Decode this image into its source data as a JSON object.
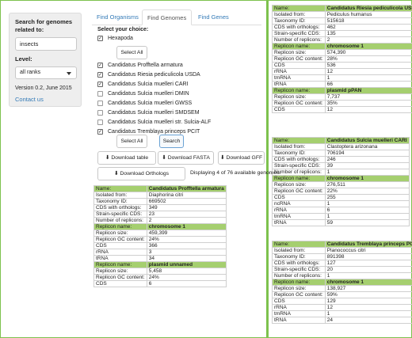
{
  "sidebar": {
    "search_label": "Search for genomes related to:",
    "search_value": "insects",
    "level_label": "Level:",
    "level_value": "all ranks",
    "version": "Version 0.2, June 2015",
    "contact": "Contact us"
  },
  "tabs": [
    "Find Organisms",
    "Find Genomes",
    "Find Genes"
  ],
  "choice_label": "Select your choice:",
  "group": "Hexapoda",
  "select_all": "Select All",
  "organisms": [
    {
      "name": "Candidatus Profftella armatura",
      "checked": true
    },
    {
      "name": "Candidatus Riesia pediculicola USDA",
      "checked": true
    },
    {
      "name": "Candidatus Sulcia muelleri CARI",
      "checked": true
    },
    {
      "name": "Candidatus Sulcia muelleri DMIN",
      "checked": false
    },
    {
      "name": "Candidatus Sulcia muelleri GWSS",
      "checked": false
    },
    {
      "name": "Candidatus Sulcia muelleri SMDSEM",
      "checked": false
    },
    {
      "name": "Candidatus Sulcia muelleri str. Sulcia-ALF",
      "checked": false
    },
    {
      "name": "Candidatus Tremblaya princeps PCIT",
      "checked": true
    }
  ],
  "buttons": {
    "select_all": "Select All",
    "search": "Search",
    "download_table": "Download table",
    "download_fasta": "Download FASTA",
    "download_gff": "Download GFF",
    "download_orthologs": "Download Orthologs"
  },
  "displaying": "Displaying 4 of 76 available genomes:",
  "main_table": [
    [
      "g",
      "Name:",
      "Candidatus Profftella armatura"
    ],
    [
      "",
      "Isolated from:",
      "Diaphorina citri"
    ],
    [
      "",
      "Taxonomy ID:",
      "669502"
    ],
    [
      "",
      "CDS with orthologs:",
      "349"
    ],
    [
      "",
      "Strain-specific CDS:",
      "23"
    ],
    [
      "",
      "Number of replicons:",
      "2"
    ],
    [
      "g",
      "Replicon name:",
      "chromosome 1"
    ],
    [
      "",
      "Replicon size:",
      "459,399"
    ],
    [
      "",
      "Replicon GC content:",
      "24%"
    ],
    [
      "",
      "CDS",
      "366"
    ],
    [
      "",
      "rRNA",
      "3"
    ],
    [
      "",
      "tRNA",
      "34"
    ],
    [
      "g",
      "Replicon name:",
      "plasmid unnamed"
    ],
    [
      "",
      "Replicon size:",
      "5,458"
    ],
    [
      "",
      "Replicon GC content:",
      "24%"
    ],
    [
      "",
      "CDS",
      "6"
    ]
  ],
  "right_tables": [
    [
      [
        "g",
        "Name:",
        "Candidatus Riesia pediculicola USDA"
      ],
      [
        "",
        "Isolated from:",
        "Pediculus humanus"
      ],
      [
        "",
        "Taxonomy ID:",
        "515618"
      ],
      [
        "",
        "CDS with orthologs:",
        "462"
      ],
      [
        "",
        "Strain-specific CDS:",
        "135"
      ],
      [
        "",
        "Number of replicons:",
        "2"
      ],
      [
        "g",
        "Replicon name:",
        "chromosome 1"
      ],
      [
        "",
        "Replicon size:",
        "574,390"
      ],
      [
        "",
        "Replicon GC content:",
        "28%"
      ],
      [
        "",
        "CDS",
        "536"
      ],
      [
        "",
        "rRNA",
        "12"
      ],
      [
        "",
        "tmRNA",
        "1"
      ],
      [
        "",
        "tRNA",
        "66"
      ],
      [
        "g",
        "Replicon name:",
        "plasmid pPAN"
      ],
      [
        "",
        "Replicon size:",
        "7,737"
      ],
      [
        "",
        "Replicon GC content:",
        "35%"
      ],
      [
        "",
        "CDS",
        "12"
      ]
    ],
    [
      [
        "g",
        "Name:",
        "Candidatus Sulcia muelleri CARI"
      ],
      [
        "",
        "Isolated from:",
        "Clastoptera arizonana"
      ],
      [
        "",
        "Taxonomy ID:",
        "706194"
      ],
      [
        "",
        "CDS with orthologs:",
        "246"
      ],
      [
        "",
        "Strain-specific CDS:",
        "39"
      ],
      [
        "",
        "Number of replicons:",
        "1"
      ],
      [
        "g",
        "Replicon name:",
        "chromosome 1"
      ],
      [
        "",
        "Replicon size:",
        "276,511"
      ],
      [
        "",
        "Replicon GC content:",
        "22%"
      ],
      [
        "",
        "CDS",
        "255"
      ],
      [
        "",
        "ncRNA",
        "1"
      ],
      [
        "",
        "rRNA",
        "6"
      ],
      [
        "",
        "tmRNA",
        "1"
      ],
      [
        "",
        "tRNA",
        "59"
      ]
    ],
    [
      [
        "g",
        "Name:",
        "Candidatus Tremblaya princeps PCIT"
      ],
      [
        "",
        "Isolated from:",
        "Planococcus citri"
      ],
      [
        "",
        "Taxonomy ID:",
        "891398"
      ],
      [
        "",
        "CDS with orthologs:",
        "127"
      ],
      [
        "",
        "Strain-specific CDS:",
        "20"
      ],
      [
        "",
        "Number of replicons:",
        "1"
      ],
      [
        "g",
        "Replicon name:",
        "chromosome 1"
      ],
      [
        "",
        "Replicon size:",
        "138,927"
      ],
      [
        "",
        "Replicon GC content:",
        "59%"
      ],
      [
        "",
        "CDS",
        "129"
      ],
      [
        "",
        "rRNA",
        "12"
      ],
      [
        "",
        "tmRNA",
        "1"
      ],
      [
        "",
        "tRNA",
        "24"
      ]
    ]
  ]
}
